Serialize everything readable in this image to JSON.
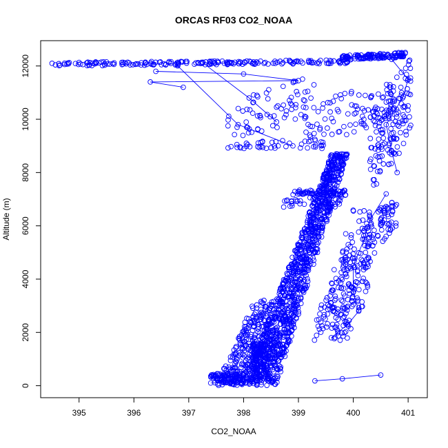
{
  "chart_data": {
    "type": "scatter",
    "title": "ORCAS RF03 CO2_NOAA",
    "xlabel": "CO2_NOAA",
    "ylabel": "Altitude (m)",
    "xlim": [
      394.3,
      401.35
    ],
    "ylim": [
      -450,
      12950
    ],
    "xticks": [
      395,
      396,
      397,
      398,
      399,
      400,
      401
    ],
    "yticks": [
      0,
      2000,
      4000,
      6000,
      8000,
      10000,
      12000
    ],
    "grid": false,
    "color": "#0000ff",
    "marker": "open-circle",
    "connected_segments": [
      [
        [
          397.4,
          100
        ],
        [
          398.2,
          150
        ],
        [
          398.1,
          600
        ],
        [
          398.3,
          1200
        ],
        [
          398.2,
          1500
        ]
      ],
      [
        [
          399.3,
          180
        ],
        [
          399.8,
          260
        ],
        [
          400.5,
          400
        ]
      ],
      [
        [
          399.6,
          1800
        ],
        [
          399.9,
          2300
        ],
        [
          400.1,
          2800
        ],
        [
          400.0,
          3500
        ],
        [
          400.0,
          4500
        ],
        [
          400.2,
          5500
        ],
        [
          400.3,
          6200
        ],
        [
          400.6,
          7200
        ]
      ],
      [
        [
          396.9,
          11200
        ],
        [
          396.3,
          11400
        ],
        [
          399.0,
          11450
        ],
        [
          398.0,
          11700
        ],
        [
          396.4,
          11800
        ]
      ],
      [
        [
          397.3,
          12050
        ],
        [
          398.1,
          10800
        ],
        [
          398.6,
          9900
        ]
      ],
      [
        [
          396.8,
          12000
        ],
        [
          397.9,
          9800
        ],
        [
          398.9,
          9000
        ]
      ],
      [
        [
          399.8,
          12350
        ],
        [
          400.3,
          12350
        ],
        [
          400.7,
          12250
        ],
        [
          401.0,
          11500
        ],
        [
          400.9,
          10800
        ],
        [
          400.6,
          9800
        ],
        [
          400.7,
          8800
        ],
        [
          400.8,
          8000
        ]
      ]
    ],
    "groups": [
      {
        "kind": "line",
        "y": [
          12000,
          12230
        ],
        "x": [
          394.5,
          399.9
        ],
        "n": 200
      },
      {
        "kind": "line",
        "y": [
          12200,
          12520
        ],
        "x": [
          399.8,
          400.95
        ],
        "n": 120
      },
      {
        "kind": "line",
        "y": [
          9100,
          11700
        ],
        "x": [
          397.7,
          399.3
        ],
        "n": 70
      },
      {
        "kind": "line",
        "y": [
          8750,
          11600
        ],
        "x": [
          399.1,
          400.7
        ],
        "n": 90
      },
      {
        "kind": "line",
        "y": [
          7200,
          12300
        ],
        "x": [
          400.3,
          401.05
        ],
        "n": 150
      },
      {
        "kind": "line",
        "y": [
          4900,
          7100
        ],
        "x": [
          400.2,
          400.8
        ],
        "n": 60
      },
      {
        "kind": "band",
        "y": [
          8900,
          9200
        ],
        "x": [
          397.7,
          399.5
        ],
        "n": 40
      },
      {
        "kind": "band",
        "y": [
          7150,
          7350
        ],
        "x": [
          398.9,
          399.9
        ],
        "n": 60
      },
      {
        "kind": "band",
        "y": [
          6650,
          7100
        ],
        "x": [
          398.7,
          399.8
        ],
        "n": 40
      },
      {
        "kind": "poly",
        "y": [
          0,
          8700
        ],
        "xl": [
          398.0,
          399.6
        ],
        "xr": [
          398.6,
          399.9
        ],
        "n": 1100
      },
      {
        "kind": "poly",
        "y": [
          0,
          3200
        ],
        "xl": [
          397.5,
          398.2
        ],
        "xr": [
          398.0,
          398.7
        ],
        "n": 260
      },
      {
        "kind": "band",
        "y": [
          100,
          450
        ],
        "x": [
          397.4,
          398.0
        ],
        "n": 90
      },
      {
        "kind": "band",
        "y": [
          150,
          1600
        ],
        "x": [
          398.15,
          398.45
        ],
        "n": 160
      },
      {
        "kind": "poly",
        "y": [
          1700,
          4800
        ],
        "xl": [
          399.2,
          399.7
        ],
        "xr": [
          399.9,
          400.3
        ],
        "n": 140
      },
      {
        "kind": "poly",
        "y": [
          2800,
          6700
        ],
        "xl": [
          399.6,
          399.95
        ],
        "xr": [
          400.2,
          400.6
        ],
        "n": 100
      }
    ]
  }
}
